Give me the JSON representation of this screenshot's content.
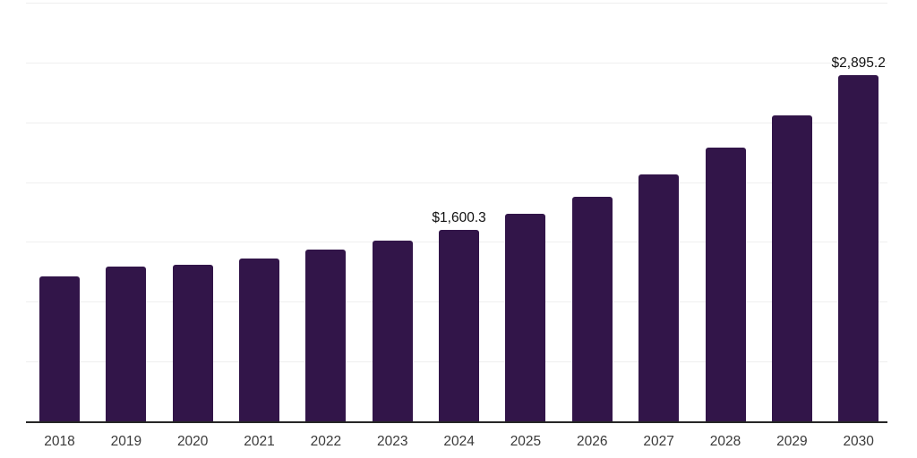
{
  "chart_data": {
    "type": "bar",
    "title": "",
    "xlabel": "",
    "ylabel": "",
    "categories": [
      "2018",
      "2019",
      "2020",
      "2021",
      "2022",
      "2023",
      "2024",
      "2025",
      "2026",
      "2027",
      "2028",
      "2029",
      "2030"
    ],
    "values": [
      1210,
      1291,
      1308,
      1363,
      1437,
      1511,
      1600.3,
      1735,
      1877,
      2062,
      2285,
      2559,
      2895.2
    ],
    "data_labels": {
      "2024": "$1,600.3",
      "2030": "$2,895.2"
    },
    "ylim": [
      0,
      3500
    ],
    "gridline_step": 500,
    "grid": "horizontal",
    "legend_position": "none",
    "colors": {
      "bar": "#321549",
      "axis_line": "#262626",
      "gridline": "#efefef",
      "tick_label": "#3a3a3a",
      "data_label": "#111111",
      "background": "#ffffff"
    }
  }
}
